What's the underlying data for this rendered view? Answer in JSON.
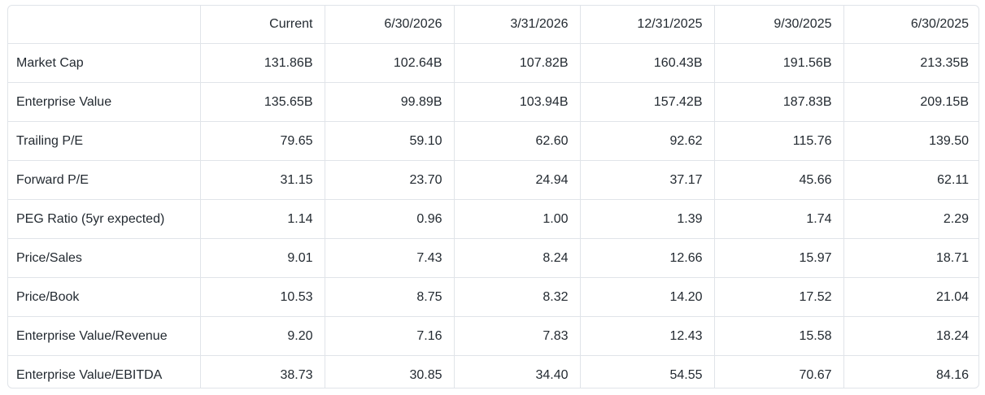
{
  "columns": [
    "",
    "Current",
    "6/30/2026",
    "3/31/2026",
    "12/31/2025",
    "9/30/2025",
    "6/30/2025"
  ],
  "rows": [
    {
      "label": "Market Cap",
      "values": [
        "131.86B",
        "102.64B",
        "107.82B",
        "160.43B",
        "191.56B",
        "213.35B"
      ]
    },
    {
      "label": "Enterprise Value",
      "values": [
        "135.65B",
        "99.89B",
        "103.94B",
        "157.42B",
        "187.83B",
        "209.15B"
      ]
    },
    {
      "label": "Trailing P/E",
      "values": [
        "79.65",
        "59.10",
        "62.60",
        "92.62",
        "115.76",
        "139.50"
      ]
    },
    {
      "label": "Forward P/E",
      "values": [
        "31.15",
        "23.70",
        "24.94",
        "37.17",
        "45.66",
        "62.11"
      ]
    },
    {
      "label": "PEG Ratio (5yr expected)",
      "values": [
        "1.14",
        "0.96",
        "1.00",
        "1.39",
        "1.74",
        "2.29"
      ]
    },
    {
      "label": "Price/Sales",
      "values": [
        "9.01",
        "7.43",
        "8.24",
        "12.66",
        "15.97",
        "18.71"
      ]
    },
    {
      "label": "Price/Book",
      "values": [
        "10.53",
        "8.75",
        "8.32",
        "14.20",
        "17.52",
        "21.04"
      ]
    },
    {
      "label": "Enterprise Value/Revenue",
      "values": [
        "9.20",
        "7.16",
        "7.83",
        "12.43",
        "15.58",
        "18.24"
      ]
    },
    {
      "label": "Enterprise Value/EBITDA",
      "values": [
        "38.73",
        "30.85",
        "34.40",
        "54.55",
        "70.67",
        "84.16"
      ]
    }
  ]
}
